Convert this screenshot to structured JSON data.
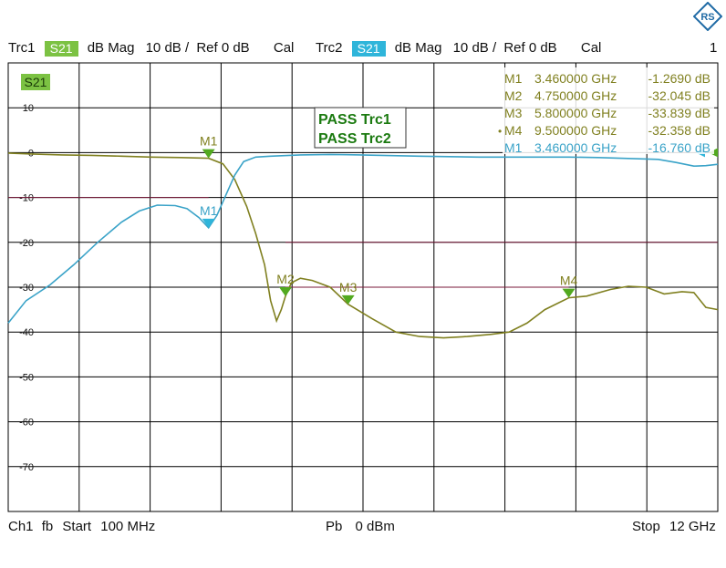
{
  "header": {
    "trc1_label": "Trc1",
    "trc1_param": "S21",
    "trc1_format": "dB Mag",
    "trc1_scale": "10 dB /",
    "trc1_ref": "Ref 0 dB",
    "trc1_cal": "Cal",
    "trc2_label": "Trc2",
    "trc2_param": "S21",
    "trc2_format": "dB Mag",
    "trc2_scale": "10 dB /",
    "trc2_ref": "Ref 0 dB",
    "trc2_cal": "Cal",
    "window_number": "1"
  },
  "footer": {
    "channel": "Ch1",
    "fb": "fb",
    "start_label": "Start",
    "start_value": "100 MHz",
    "power_label": "Pb",
    "power_value": "0 dBm",
    "stop_label": "Stop",
    "stop_value": "12 GHz"
  },
  "colors": {
    "trc1": "#808020",
    "trc1_badge": "#7cc243",
    "trc2": "#3aa3c8",
    "trc2_badge": "#2fb5da",
    "marker_fill": "#52a91f",
    "marker_fill2": "#2fb5da",
    "limit_line": "#7a1a3a",
    "pass_text": "#1b7a10",
    "grid": "#000000"
  },
  "logo_text": "RS",
  "chart_data": {
    "type": "line",
    "plot_label": "S21",
    "xlim": [
      0.1,
      12
    ],
    "ylim": [
      -80,
      20
    ],
    "y_ticks": [
      10,
      0,
      -10,
      -20,
      -30,
      -40,
      -50,
      -60,
      -70
    ],
    "grid": true,
    "pass_messages": [
      "PASS Trc1",
      "PASS Trc2"
    ],
    "limit_lines": [
      {
        "x": [
          0.1,
          3.46
        ],
        "y": [
          -10,
          -10
        ]
      },
      {
        "x": [
          4.75,
          12
        ],
        "y": [
          -20,
          -20
        ]
      },
      {
        "x": [
          4.75,
          9.5
        ],
        "y": [
          -30,
          -30
        ]
      }
    ],
    "series": [
      {
        "trace": "Trc1",
        "x": [
          0.1,
          0.5,
          1.0,
          1.5,
          2.0,
          2.5,
          3.0,
          3.46,
          3.7,
          3.9,
          4.1,
          4.25,
          4.4,
          4.5,
          4.6,
          4.68,
          4.75,
          4.85,
          5.0,
          5.2,
          5.5,
          5.8,
          6.2,
          6.6,
          7.0,
          7.4,
          7.8,
          8.2,
          8.5,
          8.8,
          9.1,
          9.5,
          9.8,
          10.2,
          10.5,
          10.8,
          11.1,
          11.4,
          11.6,
          11.8,
          12.0
        ],
        "y": [
          -0.1,
          -0.3,
          -0.5,
          -0.6,
          -0.8,
          -1.0,
          -1.1,
          -1.27,
          -2.5,
          -6.0,
          -12.0,
          -18.0,
          -25.0,
          -33.0,
          -37.5,
          -35.0,
          -32.0,
          -29.0,
          -28.0,
          -28.5,
          -30.0,
          -33.8,
          -37.0,
          -40.0,
          -41.0,
          -41.3,
          -41.0,
          -40.5,
          -40.0,
          -38.0,
          -35.0,
          -32.358,
          -32.0,
          -30.5,
          -29.8,
          -30.0,
          -31.5,
          -31.0,
          -31.2,
          -34.5,
          -35.0
        ]
      },
      {
        "trace": "Trc2",
        "x": [
          0.1,
          0.4,
          0.8,
          1.2,
          1.6,
          2.0,
          2.3,
          2.6,
          2.9,
          3.1,
          3.3,
          3.46,
          3.6,
          3.75,
          3.9,
          4.05,
          4.25,
          4.5,
          5.0,
          5.5,
          6.0,
          7.0,
          8.0,
          9.0,
          9.5,
          10.0,
          10.5,
          11.0,
          11.3,
          11.6,
          11.8,
          12.0
        ],
        "y": [
          -38.0,
          -33.0,
          -29.5,
          -25.0,
          -20.0,
          -15.5,
          -13.0,
          -11.7,
          -11.8,
          -12.5,
          -14.5,
          -16.76,
          -14.0,
          -9.5,
          -5.0,
          -2.0,
          -1.0,
          -0.8,
          -0.5,
          -0.4,
          -0.5,
          -0.8,
          -1.0,
          -1.0,
          -1.0,
          -1.1,
          -1.3,
          -1.5,
          -2.2,
          -3.0,
          -2.9,
          -2.6
        ]
      }
    ],
    "markers": [
      {
        "trace": "Trc1",
        "name": "M1",
        "x": 3.46,
        "y": -1.269,
        "label": "M1",
        "freq_text": "3.460000 GHz",
        "value_text": "-1.2690 dB",
        "active": false
      },
      {
        "trace": "Trc1",
        "name": "M2",
        "x": 4.75,
        "y": -32.045,
        "label": "M2",
        "freq_text": "4.750000 GHz",
        "value_text": "-32.045 dB",
        "active": false
      },
      {
        "trace": "Trc1",
        "name": "M3",
        "x": 5.8,
        "y": -33.839,
        "label": "M3",
        "freq_text": "5.800000 GHz",
        "value_text": "-33.839 dB",
        "active": false
      },
      {
        "trace": "Trc1",
        "name": "M4",
        "x": 9.5,
        "y": -32.358,
        "label": "M4",
        "freq_text": "9.500000 GHz",
        "value_text": "-32.358 dB",
        "active": true
      },
      {
        "trace": "Trc2",
        "name": "M1",
        "x": 3.46,
        "y": -16.76,
        "label": "M1",
        "freq_text": "3.460000 GHz",
        "value_text": "-16.760 dB",
        "active": false
      }
    ]
  }
}
